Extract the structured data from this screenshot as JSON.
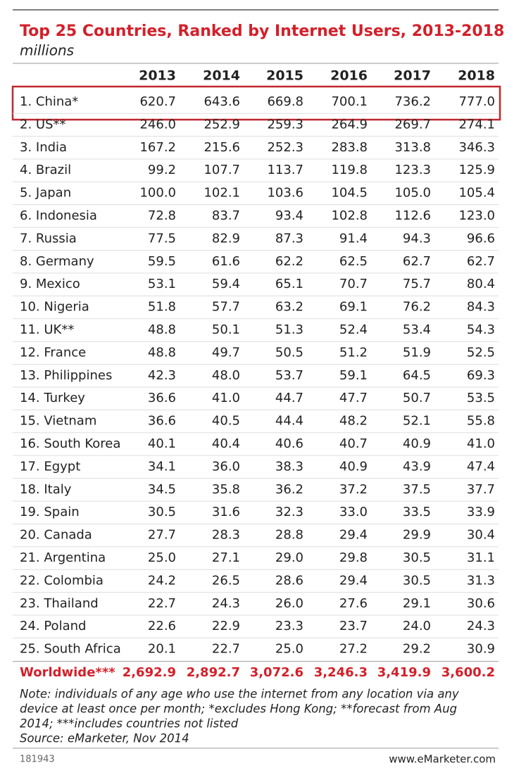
{
  "header": {
    "title": "Top 25 Countries, Ranked by Internet Users, 2013-2018",
    "subtitle": "millions"
  },
  "table": {
    "columns": [
      "2013",
      "2014",
      "2015",
      "2016",
      "2017",
      "2018"
    ],
    "rows": [
      [
        "1. China*",
        "620.7",
        "643.6",
        "669.8",
        "700.1",
        "736.2",
        "777.0"
      ],
      [
        "2. US**",
        "246.0",
        "252.9",
        "259.3",
        "264.9",
        "269.7",
        "274.1"
      ],
      [
        "3. India",
        "167.2",
        "215.6",
        "252.3",
        "283.8",
        "313.8",
        "346.3"
      ],
      [
        "4. Brazil",
        "99.2",
        "107.7",
        "113.7",
        "119.8",
        "123.3",
        "125.9"
      ],
      [
        "5. Japan",
        "100.0",
        "102.1",
        "103.6",
        "104.5",
        "105.0",
        "105.4"
      ],
      [
        "6. Indonesia",
        "72.8",
        "83.7",
        "93.4",
        "102.8",
        "112.6",
        "123.0"
      ],
      [
        "7. Russia",
        "77.5",
        "82.9",
        "87.3",
        "91.4",
        "94.3",
        "96.6"
      ],
      [
        "8. Germany",
        "59.5",
        "61.6",
        "62.2",
        "62.5",
        "62.7",
        "62.7"
      ],
      [
        "9. Mexico",
        "53.1",
        "59.4",
        "65.1",
        "70.7",
        "75.7",
        "80.4"
      ],
      [
        "10. Nigeria",
        "51.8",
        "57.7",
        "63.2",
        "69.1",
        "76.2",
        "84.3"
      ],
      [
        "11. UK**",
        "48.8",
        "50.1",
        "51.3",
        "52.4",
        "53.4",
        "54.3"
      ],
      [
        "12. France",
        "48.8",
        "49.7",
        "50.5",
        "51.2",
        "51.9",
        "52.5"
      ],
      [
        "13. Philippines",
        "42.3",
        "48.0",
        "53.7",
        "59.1",
        "64.5",
        "69.3"
      ],
      [
        "14. Turkey",
        "36.6",
        "41.0",
        "44.7",
        "47.7",
        "50.7",
        "53.5"
      ],
      [
        "15. Vietnam",
        "36.6",
        "40.5",
        "44.4",
        "48.2",
        "52.1",
        "55.8"
      ],
      [
        "16. South Korea",
        "40.1",
        "40.4",
        "40.6",
        "40.7",
        "40.9",
        "41.0"
      ],
      [
        "17. Egypt",
        "34.1",
        "36.0",
        "38.3",
        "40.9",
        "43.9",
        "47.4"
      ],
      [
        "18. Italy",
        "34.5",
        "35.8",
        "36.2",
        "37.2",
        "37.5",
        "37.7"
      ],
      [
        "19. Spain",
        "30.5",
        "31.6",
        "32.3",
        "33.0",
        "33.5",
        "33.9"
      ],
      [
        "20. Canada",
        "27.7",
        "28.3",
        "28.8",
        "29.4",
        "29.9",
        "30.4"
      ],
      [
        "21. Argentina",
        "25.0",
        "27.1",
        "29.0",
        "29.8",
        "30.5",
        "31.1"
      ],
      [
        "22. Colombia",
        "24.2",
        "26.5",
        "28.6",
        "29.4",
        "30.5",
        "31.3"
      ],
      [
        "23. Thailand",
        "22.7",
        "24.3",
        "26.0",
        "27.6",
        "29.1",
        "30.6"
      ],
      [
        "24. Poland",
        "22.6",
        "22.9",
        "23.3",
        "23.7",
        "24.0",
        "24.3"
      ],
      [
        "25. South Africa",
        "20.1",
        "22.7",
        "25.0",
        "27.2",
        "29.2",
        "30.9"
      ]
    ],
    "total": [
      "Worldwide***",
      "2,692.9",
      "2,892.7",
      "3,072.6",
      "3,246.3",
      "3,419.9",
      "3,600.2"
    ]
  },
  "notes": [
    "Note: individuals of any age who use the internet from any location via any",
    "device at least once per month; *excludes Hong Kong; **forecast from Aug",
    "2014; ***includes countries not listed",
    "Source: eMarketer, Nov 2014"
  ],
  "footer": {
    "id": "181943",
    "site": "www.eMarketer.com"
  }
}
